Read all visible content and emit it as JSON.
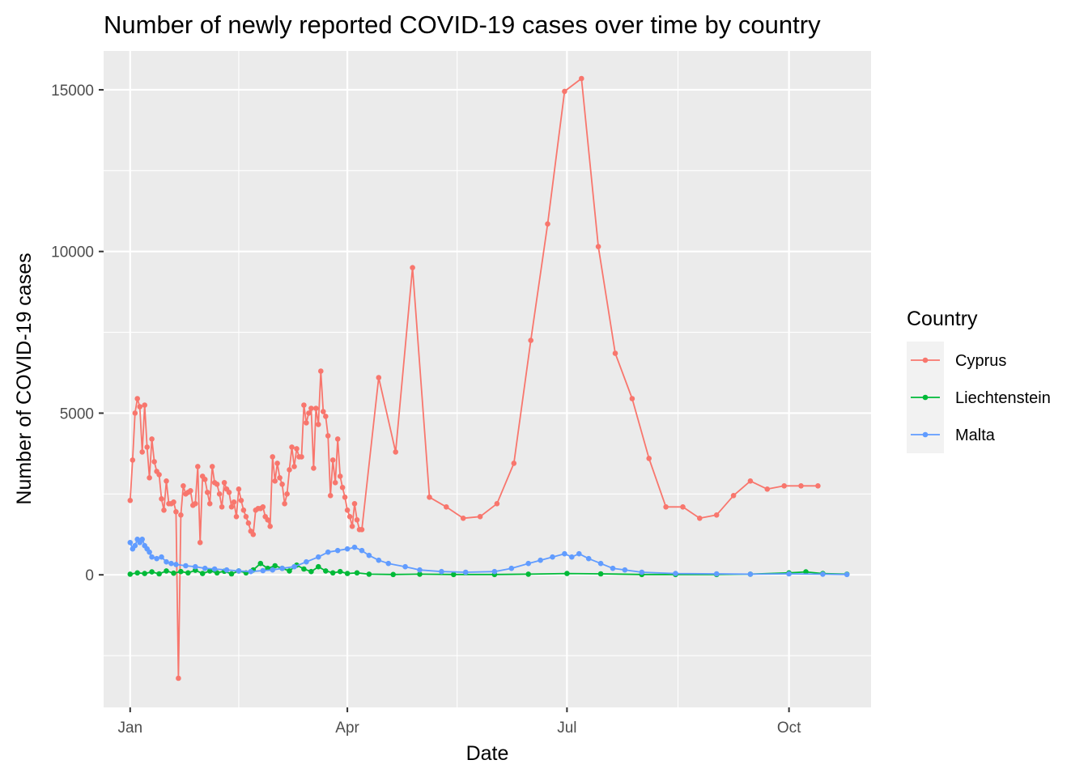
{
  "chart_data": {
    "type": "line",
    "title": "Number of newly reported COVID-19 cases over time by country",
    "xlabel": "Date",
    "ylabel": "Number of COVID-19 cases",
    "x_ticks": [
      {
        "date": "2022-01-01",
        "label": "Jan"
      },
      {
        "date": "2022-04-01",
        "label": "Apr"
      },
      {
        "date": "2022-07-01",
        "label": "Jul"
      },
      {
        "date": "2022-10-01",
        "label": "Oct"
      }
    ],
    "y_ticks": [
      0,
      5000,
      10000,
      15000
    ],
    "xlim": [
      "2021-12-21",
      "2022-11-04"
    ],
    "ylim": [
      -4100,
      16200
    ],
    "grid": true,
    "legend": {
      "title": "Country",
      "position": "right",
      "entries": [
        "Cyprus",
        "Liechtenstein",
        "Malta"
      ]
    },
    "series": [
      {
        "name": "Cyprus",
        "color": "#F8766D",
        "points": [
          [
            "2022-01-01",
            2300
          ],
          [
            "2022-01-02",
            3550
          ],
          [
            "2022-01-03",
            5000
          ],
          [
            "2022-01-04",
            5450
          ],
          [
            "2022-01-05",
            5200
          ],
          [
            "2022-01-06",
            3800
          ],
          [
            "2022-01-07",
            5250
          ],
          [
            "2022-01-08",
            3950
          ],
          [
            "2022-01-09",
            3000
          ],
          [
            "2022-01-10",
            4200
          ],
          [
            "2022-01-11",
            3500
          ],
          [
            "2022-01-12",
            3200
          ],
          [
            "2022-01-13",
            3100
          ],
          [
            "2022-01-14",
            2350
          ],
          [
            "2022-01-15",
            2000
          ],
          [
            "2022-01-16",
            2900
          ],
          [
            "2022-01-17",
            2200
          ],
          [
            "2022-01-18",
            2200
          ],
          [
            "2022-01-19",
            2250
          ],
          [
            "2022-01-20",
            1950
          ],
          [
            "2022-01-21",
            -3200
          ],
          [
            "2022-01-22",
            1850
          ],
          [
            "2022-01-23",
            2750
          ],
          [
            "2022-01-24",
            2500
          ],
          [
            "2022-01-25",
            2550
          ],
          [
            "2022-01-26",
            2600
          ],
          [
            "2022-01-27",
            2150
          ],
          [
            "2022-01-28",
            2200
          ],
          [
            "2022-01-29",
            3350
          ],
          [
            "2022-01-30",
            1000
          ],
          [
            "2022-01-31",
            3050
          ],
          [
            "2022-02-01",
            2950
          ],
          [
            "2022-02-02",
            2550
          ],
          [
            "2022-02-03",
            2200
          ],
          [
            "2022-02-04",
            3350
          ],
          [
            "2022-02-05",
            2850
          ],
          [
            "2022-02-06",
            2800
          ],
          [
            "2022-02-07",
            2500
          ],
          [
            "2022-02-08",
            2100
          ],
          [
            "2022-02-09",
            2850
          ],
          [
            "2022-02-10",
            2650
          ],
          [
            "2022-02-11",
            2550
          ],
          [
            "2022-02-12",
            2100
          ],
          [
            "2022-02-13",
            2250
          ],
          [
            "2022-02-14",
            1800
          ],
          [
            "2022-02-15",
            2650
          ],
          [
            "2022-02-16",
            2300
          ],
          [
            "2022-02-17",
            2000
          ],
          [
            "2022-02-18",
            1800
          ],
          [
            "2022-02-19",
            1600
          ],
          [
            "2022-02-20",
            1350
          ],
          [
            "2022-02-21",
            1250
          ],
          [
            "2022-02-22",
            2000
          ],
          [
            "2022-02-23",
            2050
          ],
          [
            "2022-02-24",
            2050
          ],
          [
            "2022-02-25",
            2100
          ],
          [
            "2022-02-26",
            1800
          ],
          [
            "2022-02-27",
            1700
          ],
          [
            "2022-02-28",
            1500
          ],
          [
            "2022-03-01",
            3650
          ],
          [
            "2022-03-02",
            2900
          ],
          [
            "2022-03-03",
            3450
          ],
          [
            "2022-03-04",
            3000
          ],
          [
            "2022-03-05",
            2800
          ],
          [
            "2022-03-06",
            2200
          ],
          [
            "2022-03-07",
            2500
          ],
          [
            "2022-03-08",
            3250
          ],
          [
            "2022-03-09",
            3950
          ],
          [
            "2022-03-10",
            3350
          ],
          [
            "2022-03-11",
            3900
          ],
          [
            "2022-03-12",
            3650
          ],
          [
            "2022-03-13",
            3650
          ],
          [
            "2022-03-14",
            5250
          ],
          [
            "2022-03-15",
            4700
          ],
          [
            "2022-03-16",
            5000
          ],
          [
            "2022-03-17",
            5150
          ],
          [
            "2022-03-18",
            3300
          ],
          [
            "2022-03-19",
            5150
          ],
          [
            "2022-03-20",
            4650
          ],
          [
            "2022-03-21",
            6300
          ],
          [
            "2022-03-22",
            5050
          ],
          [
            "2022-03-23",
            4900
          ],
          [
            "2022-03-24",
            4300
          ],
          [
            "2022-03-25",
            2450
          ],
          [
            "2022-03-26",
            3550
          ],
          [
            "2022-03-27",
            2850
          ],
          [
            "2022-03-28",
            4200
          ],
          [
            "2022-03-29",
            3050
          ],
          [
            "2022-03-30",
            2700
          ],
          [
            "2022-03-31",
            2400
          ],
          [
            "2022-04-01",
            2000
          ],
          [
            "2022-04-02",
            1800
          ],
          [
            "2022-04-03",
            1500
          ],
          [
            "2022-04-04",
            2200
          ],
          [
            "2022-04-05",
            1700
          ],
          [
            "2022-04-06",
            1400
          ],
          [
            "2022-04-07",
            1400
          ],
          [
            "2022-04-14",
            6100
          ],
          [
            "2022-04-21",
            3800
          ],
          [
            "2022-04-28",
            9500
          ],
          [
            "2022-05-05",
            2400
          ],
          [
            "2022-05-12",
            2100
          ],
          [
            "2022-05-19",
            1750
          ],
          [
            "2022-05-26",
            1800
          ],
          [
            "2022-06-02",
            2200
          ],
          [
            "2022-06-09",
            3450
          ],
          [
            "2022-06-16",
            7250
          ],
          [
            "2022-06-23",
            10850
          ],
          [
            "2022-06-30",
            14950
          ],
          [
            "2022-07-07",
            15350
          ],
          [
            "2022-07-14",
            10150
          ],
          [
            "2022-07-21",
            6850
          ],
          [
            "2022-07-28",
            5450
          ],
          [
            "2022-08-04",
            3600
          ],
          [
            "2022-08-11",
            2100
          ],
          [
            "2022-08-18",
            2100
          ],
          [
            "2022-08-25",
            1750
          ],
          [
            "2022-09-01",
            1850
          ],
          [
            "2022-09-08",
            2450
          ],
          [
            "2022-09-15",
            2900
          ],
          [
            "2022-09-22",
            2650
          ],
          [
            "2022-09-29",
            2750
          ],
          [
            "2022-10-06",
            2750
          ],
          [
            "2022-10-13",
            2750
          ]
        ]
      },
      {
        "name": "Liechtenstein",
        "color": "#00BA38",
        "points": [
          [
            "2022-01-01",
            20
          ],
          [
            "2022-01-04",
            60
          ],
          [
            "2022-01-07",
            40
          ],
          [
            "2022-01-10",
            90
          ],
          [
            "2022-01-13",
            30
          ],
          [
            "2022-01-16",
            120
          ],
          [
            "2022-01-19",
            50
          ],
          [
            "2022-01-22",
            100
          ],
          [
            "2022-01-25",
            60
          ],
          [
            "2022-01-28",
            140
          ],
          [
            "2022-01-31",
            40
          ],
          [
            "2022-02-03",
            120
          ],
          [
            "2022-02-06",
            60
          ],
          [
            "2022-02-09",
            110
          ],
          [
            "2022-02-12",
            30
          ],
          [
            "2022-02-15",
            120
          ],
          [
            "2022-02-18",
            60
          ],
          [
            "2022-02-21",
            150
          ],
          [
            "2022-02-24",
            350
          ],
          [
            "2022-02-27",
            200
          ],
          [
            "2022-03-02",
            280
          ],
          [
            "2022-03-05",
            200
          ],
          [
            "2022-03-08",
            120
          ],
          [
            "2022-03-11",
            300
          ],
          [
            "2022-03-14",
            180
          ],
          [
            "2022-03-17",
            100
          ],
          [
            "2022-03-20",
            250
          ],
          [
            "2022-03-23",
            120
          ],
          [
            "2022-03-26",
            60
          ],
          [
            "2022-03-29",
            100
          ],
          [
            "2022-04-01",
            40
          ],
          [
            "2022-04-05",
            60
          ],
          [
            "2022-04-10",
            20
          ],
          [
            "2022-04-20",
            10
          ],
          [
            "2022-05-01",
            20
          ],
          [
            "2022-05-15",
            10
          ],
          [
            "2022-06-01",
            10
          ],
          [
            "2022-06-15",
            20
          ],
          [
            "2022-07-01",
            40
          ],
          [
            "2022-07-15",
            30
          ],
          [
            "2022-08-01",
            10
          ],
          [
            "2022-08-15",
            10
          ],
          [
            "2022-09-01",
            10
          ],
          [
            "2022-09-15",
            20
          ],
          [
            "2022-10-01",
            60
          ],
          [
            "2022-10-08",
            90
          ],
          [
            "2022-10-15",
            40
          ],
          [
            "2022-10-25",
            20
          ]
        ]
      },
      {
        "name": "Malta",
        "color": "#619CFF",
        "points": [
          [
            "2022-01-01",
            1000
          ],
          [
            "2022-01-02",
            800
          ],
          [
            "2022-01-03",
            900
          ],
          [
            "2022-01-04",
            1100
          ],
          [
            "2022-01-05",
            1000
          ],
          [
            "2022-01-06",
            1100
          ],
          [
            "2022-01-07",
            900
          ],
          [
            "2022-01-08",
            800
          ],
          [
            "2022-01-09",
            700
          ],
          [
            "2022-01-10",
            550
          ],
          [
            "2022-01-12",
            500
          ],
          [
            "2022-01-14",
            550
          ],
          [
            "2022-01-16",
            400
          ],
          [
            "2022-01-18",
            350
          ],
          [
            "2022-01-20",
            320
          ],
          [
            "2022-01-24",
            280
          ],
          [
            "2022-01-28",
            250
          ],
          [
            "2022-02-01",
            200
          ],
          [
            "2022-02-05",
            180
          ],
          [
            "2022-02-10",
            150
          ],
          [
            "2022-02-15",
            120
          ],
          [
            "2022-02-20",
            100
          ],
          [
            "2022-02-25",
            130
          ],
          [
            "2022-03-01",
            150
          ],
          [
            "2022-03-05",
            200
          ],
          [
            "2022-03-10",
            250
          ],
          [
            "2022-03-15",
            400
          ],
          [
            "2022-03-20",
            550
          ],
          [
            "2022-03-24",
            700
          ],
          [
            "2022-03-28",
            750
          ],
          [
            "2022-04-01",
            800
          ],
          [
            "2022-04-04",
            850
          ],
          [
            "2022-04-07",
            750
          ],
          [
            "2022-04-10",
            600
          ],
          [
            "2022-04-14",
            450
          ],
          [
            "2022-04-18",
            350
          ],
          [
            "2022-04-25",
            250
          ],
          [
            "2022-05-01",
            150
          ],
          [
            "2022-05-10",
            100
          ],
          [
            "2022-05-20",
            80
          ],
          [
            "2022-06-01",
            100
          ],
          [
            "2022-06-08",
            200
          ],
          [
            "2022-06-15",
            350
          ],
          [
            "2022-06-20",
            450
          ],
          [
            "2022-06-25",
            550
          ],
          [
            "2022-06-30",
            650
          ],
          [
            "2022-07-03",
            550
          ],
          [
            "2022-07-06",
            650
          ],
          [
            "2022-07-10",
            500
          ],
          [
            "2022-07-15",
            350
          ],
          [
            "2022-07-20",
            200
          ],
          [
            "2022-07-25",
            150
          ],
          [
            "2022-08-01",
            80
          ],
          [
            "2022-08-15",
            40
          ],
          [
            "2022-09-01",
            30
          ],
          [
            "2022-09-15",
            20
          ],
          [
            "2022-10-01",
            30
          ],
          [
            "2022-10-15",
            20
          ],
          [
            "2022-10-25",
            10
          ]
        ]
      }
    ]
  }
}
